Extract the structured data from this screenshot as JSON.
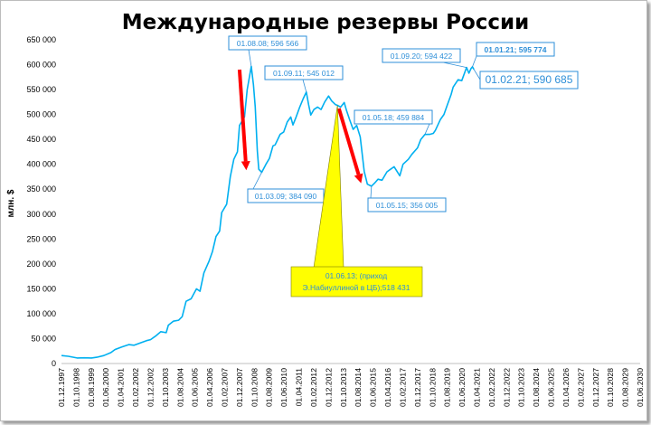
{
  "chart_data": {
    "type": "line",
    "title": "Международные резервы России",
    "ylabel": "млн. $",
    "ylim": [
      0,
      650000
    ],
    "yticks": [
      "0",
      "50 000",
      "100 000",
      "150 000",
      "200 000",
      "250 000",
      "300 000",
      "350 000",
      "400 000",
      "450 000",
      "500 000",
      "550 000",
      "600 000",
      "650 000"
    ],
    "categories": [
      "01.12.1997",
      "01.10.1998",
      "01.08.1999",
      "01.06.2000",
      "01.04.2001",
      "01.02.2002",
      "01.12.2002",
      "01.10.2003",
      "01.08.2004",
      "01.06.2005",
      "01.04.2006",
      "01.02.2007",
      "01.12.2007",
      "01.10.2008",
      "01.08.2009",
      "01.06.2010",
      "01.04.2011",
      "01.02.2012",
      "01.12.2012",
      "01.10.2013",
      "01.08.2014",
      "01.06.2015",
      "01.04.2016",
      "01.02.2017",
      "01.12.2017",
      "01.10.2018",
      "01.08.2019",
      "01.06.2020",
      "01.04.2021",
      "01.02.2022",
      "01.12.2022",
      "01.10.2023",
      "01.08.2024",
      "01.06.2025",
      "01.04.2026",
      "01.02.2027",
      "01.12.2027",
      "01.10.2028",
      "01.08.2029",
      "01.06.2030"
    ],
    "series": [
      {
        "color": "#00b0f0",
        "points": [
          [
            "1997.92",
            16000
          ],
          [
            "1998.3",
            14500
          ],
          [
            "1998.6",
            12500
          ],
          [
            "1998.8",
            11000
          ],
          [
            "1999.2",
            11500
          ],
          [
            "1999.6",
            11000
          ],
          [
            "1999.9",
            12500
          ],
          [
            "2000.3",
            16000
          ],
          [
            "2000.7",
            22000
          ],
          [
            "2000.92",
            28000
          ],
          [
            "2001.3",
            33000
          ],
          [
            "2001.7",
            38000
          ],
          [
            "2002.0",
            36600
          ],
          [
            "2002.4",
            42000
          ],
          [
            "2002.7",
            46000
          ],
          [
            "2002.92",
            48000
          ],
          [
            "2003.2",
            55000
          ],
          [
            "2003.5",
            64000
          ],
          [
            "2003.8",
            62000
          ],
          [
            "2003.92",
            77000
          ],
          [
            "2004.2",
            85000
          ],
          [
            "2004.5",
            87000
          ],
          [
            "2004.7",
            94000
          ],
          [
            "2004.92",
            125000
          ],
          [
            "2005.2",
            130000
          ],
          [
            "2005.5",
            150000
          ],
          [
            "2005.7",
            145000
          ],
          [
            "2005.92",
            182000
          ],
          [
            "2006.2",
            205000
          ],
          [
            "2006.4",
            225000
          ],
          [
            "2006.6",
            255000
          ],
          [
            "2006.8",
            266000
          ],
          [
            "2006.92",
            303000
          ],
          [
            "2007.2",
            320000
          ],
          [
            "2007.4",
            375000
          ],
          [
            "2007.6",
            410000
          ],
          [
            "2007.8",
            425000
          ],
          [
            "2007.92",
            478000
          ],
          [
            "2008.2",
            495000
          ],
          [
            "2008.35",
            550000
          ],
          [
            "2008.58",
            596566
          ],
          [
            "2008.7",
            560000
          ],
          [
            "2008.8",
            515000
          ],
          [
            "2008.92",
            427000
          ],
          [
            "2009.0",
            390000
          ],
          [
            "2009.17",
            384090
          ],
          [
            "2009.4",
            400000
          ],
          [
            "2009.6",
            412000
          ],
          [
            "2009.8",
            437000
          ],
          [
            "2009.92",
            439000
          ],
          [
            "2010.2",
            460000
          ],
          [
            "2010.4",
            465000
          ],
          [
            "2010.6",
            485000
          ],
          [
            "2010.8",
            495000
          ],
          [
            "2010.92",
            479000
          ],
          [
            "2011.1",
            495000
          ],
          [
            "2011.3",
            515000
          ],
          [
            "2011.5",
            532000
          ],
          [
            "2011.67",
            545012
          ],
          [
            "2011.8",
            520000
          ],
          [
            "2011.92",
            499000
          ],
          [
            "2012.1",
            510000
          ],
          [
            "2012.3",
            515000
          ],
          [
            "2012.5",
            510000
          ],
          [
            "2012.7",
            525000
          ],
          [
            "2012.92",
            537000
          ],
          [
            "2013.1",
            527000
          ],
          [
            "2013.3",
            520000
          ],
          [
            "2013.42",
            518431
          ],
          [
            "2013.6",
            515000
          ],
          [
            "2013.8",
            524000
          ],
          [
            "2013.92",
            509000
          ],
          [
            "2014.1",
            490000
          ],
          [
            "2014.3",
            470000
          ],
          [
            "2014.5",
            478000
          ],
          [
            "2014.7",
            455000
          ],
          [
            "2014.92",
            386000
          ],
          [
            "2015.1",
            360000
          ],
          [
            "2015.33",
            356005
          ],
          [
            "2015.5",
            362000
          ],
          [
            "2015.7",
            370000
          ],
          [
            "2015.92",
            368000
          ],
          [
            "2016.2",
            385000
          ],
          [
            "2016.4",
            390000
          ],
          [
            "2016.6",
            395000
          ],
          [
            "2016.92",
            377000
          ],
          [
            "2017.1",
            400000
          ],
          [
            "2017.4",
            410000
          ],
          [
            "2017.6",
            420000
          ],
          [
            "2017.92",
            433000
          ],
          [
            "2018.1",
            450000
          ],
          [
            "2018.33",
            459884
          ],
          [
            "2018.6",
            460000
          ],
          [
            "2018.8",
            462000
          ],
          [
            "2018.92",
            468000
          ],
          [
            "2019.2",
            490000
          ],
          [
            "2019.4",
            500000
          ],
          [
            "2019.6",
            520000
          ],
          [
            "2019.8",
            540000
          ],
          [
            "2019.92",
            555000
          ],
          [
            "2020.2",
            570000
          ],
          [
            "2020.4",
            568000
          ],
          [
            "2020.67",
            594422
          ],
          [
            "2020.8",
            583000
          ],
          [
            "2020.92",
            592000
          ],
          [
            "2021.0",
            595774
          ],
          [
            "2021.08",
            590685
          ]
        ]
      }
    ],
    "annotations": [
      {
        "label": "01.08.08; 596 566"
      },
      {
        "label": "01.09.11; 545 012"
      },
      {
        "label": "01.03.09; 384 090"
      },
      {
        "label": "01.05.15; 356 005"
      },
      {
        "label": "01.05.18; 459 884"
      },
      {
        "label": "01.09.20; 594 422"
      },
      {
        "label": "01.01.21; 595 774"
      },
      {
        "label": "01.02.21; 590 685"
      },
      {
        "label_line1": "01.06.13; (приход",
        "label_line2": "Э.Набиуллиной в ЦБ);518 431"
      }
    ],
    "arrows": [
      {
        "color": "#ff0000",
        "from": [
          "2007.92",
          590000
        ],
        "to": [
          "2008.3",
          388000
        ]
      },
      {
        "color": "#ff0000",
        "from": [
          "2013.5",
          512000
        ],
        "to": [
          "2014.75",
          362000
        ]
      }
    ],
    "grid": false,
    "legend": "none"
  },
  "colors": {
    "line": "#00b0f0",
    "annotation": "#2e8fd8",
    "callout_fill": "#ffff00",
    "arrow": "#ff0000"
  }
}
